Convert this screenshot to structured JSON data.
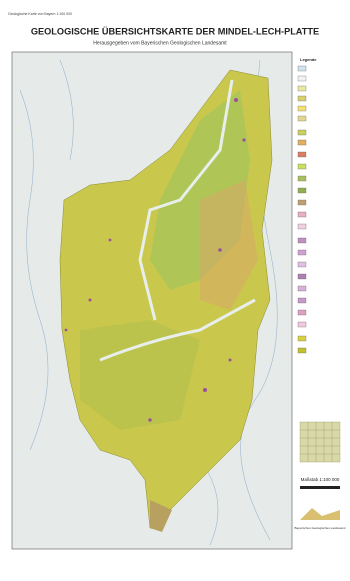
{
  "header": {
    "top_note": "Geologische Karte von Bayern 1:100 000",
    "title": "GEOLOGISCHE ÜBERSICHTSKARTE DER MINDEL-LECH-PLATTE",
    "subtitle": "Herausgegeben vom Bayerischen Geologischen Landesamt"
  },
  "map": {
    "legend_title": "Legende",
    "scale": "Maßstab 1:100 000",
    "publisher": "Bayerisches Geologisches Landesamt"
  }
}
